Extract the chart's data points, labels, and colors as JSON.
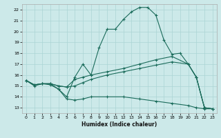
{
  "xlabel": "Humidex (Indice chaleur)",
  "xlim": [
    -0.5,
    23.5
  ],
  "ylim": [
    12.5,
    22.5
  ],
  "xticks": [
    0,
    1,
    2,
    3,
    4,
    5,
    6,
    7,
    8,
    9,
    10,
    11,
    12,
    13,
    14,
    15,
    16,
    17,
    18,
    19,
    20,
    21,
    22,
    23
  ],
  "yticks": [
    13,
    14,
    15,
    16,
    17,
    18,
    19,
    20,
    21,
    22
  ],
  "bg_color": "#cce9e9",
  "grid_color": "#aad4d4",
  "line_color": "#1a6b5a",
  "line1_x": [
    0,
    1,
    2,
    3,
    4,
    5,
    6,
    7,
    8,
    9,
    10,
    11,
    12,
    13,
    14,
    15,
    16,
    17,
    18,
    19,
    20,
    21,
    22,
    23
  ],
  "line1_y": [
    15.5,
    15.0,
    15.2,
    15.1,
    14.7,
    14.0,
    15.8,
    17.0,
    16.0,
    18.5,
    20.2,
    20.2,
    21.1,
    21.8,
    22.2,
    22.2,
    21.5,
    19.2,
    17.9,
    18.0,
    17.0,
    15.8,
    13.0,
    12.9
  ],
  "line2_x": [
    0,
    1,
    2,
    3,
    4,
    5,
    6,
    7,
    8,
    10,
    12,
    14,
    16,
    18,
    20,
    21,
    22,
    23
  ],
  "line2_y": [
    15.5,
    15.1,
    15.2,
    15.2,
    15.0,
    14.9,
    15.6,
    15.8,
    16.0,
    16.3,
    16.6,
    17.0,
    17.4,
    17.7,
    17.0,
    15.8,
    13.0,
    12.9
  ],
  "line3_x": [
    0,
    1,
    2,
    3,
    4,
    5,
    6,
    7,
    8,
    10,
    12,
    14,
    16,
    18,
    20,
    21,
    22,
    23
  ],
  "line3_y": [
    15.5,
    15.1,
    15.2,
    15.2,
    15.0,
    14.9,
    15.0,
    15.3,
    15.6,
    16.0,
    16.3,
    16.6,
    16.9,
    17.2,
    17.0,
    15.8,
    13.0,
    12.9
  ],
  "line4_x": [
    0,
    1,
    2,
    3,
    4,
    5,
    6,
    7,
    8,
    10,
    12,
    14,
    16,
    18,
    20,
    21,
    22,
    23
  ],
  "line4_y": [
    15.5,
    15.1,
    15.2,
    15.2,
    14.7,
    13.8,
    13.7,
    13.8,
    14.0,
    14.0,
    14.0,
    13.8,
    13.6,
    13.4,
    13.2,
    13.0,
    12.9,
    12.9
  ]
}
